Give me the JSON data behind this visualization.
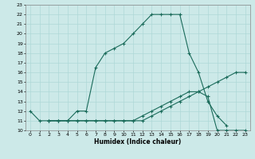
{
  "xlabel": "Humidex (Indice chaleur)",
  "xlim": [
    -0.5,
    23.5
  ],
  "ylim": [
    10,
    23
  ],
  "xticks": [
    0,
    1,
    2,
    3,
    4,
    5,
    6,
    7,
    8,
    9,
    10,
    11,
    12,
    13,
    14,
    15,
    16,
    17,
    18,
    19,
    20,
    21,
    22,
    23
  ],
  "yticks": [
    10,
    11,
    12,
    13,
    14,
    15,
    16,
    17,
    18,
    19,
    20,
    21,
    22,
    23
  ],
  "bg_color": "#cce9e8",
  "line_color": "#1a6b5a",
  "grid_color": "#aed8d7",
  "line1_x": [
    0,
    1,
    2,
    3,
    4,
    5,
    6,
    7,
    8,
    9,
    10,
    11,
    12,
    13,
    14,
    15,
    16,
    17,
    18,
    19,
    20,
    21
  ],
  "line1_y": [
    12,
    11,
    11,
    11,
    11,
    12,
    12,
    16.5,
    18,
    18.5,
    19,
    20,
    21,
    22,
    22,
    22,
    22,
    18,
    16,
    13,
    11.5,
    10.5
  ],
  "line2_x": [
    2,
    3,
    4,
    5,
    6,
    7,
    8,
    9,
    10,
    11,
    12,
    13,
    14,
    15,
    16,
    17,
    18,
    19,
    20,
    21,
    22,
    23
  ],
  "line2_y": [
    11,
    11,
    11,
    11,
    11,
    11,
    11,
    11,
    11,
    11,
    11,
    11.5,
    12,
    12.5,
    13,
    13.5,
    14,
    14.5,
    15,
    15.5,
    16,
    16
  ],
  "line3_x": [
    2,
    3,
    4,
    5,
    6,
    7,
    8,
    9,
    10,
    11,
    12,
    13,
    14,
    15,
    16,
    17,
    18,
    19,
    20,
    21,
    22,
    23
  ],
  "line3_y": [
    11,
    11,
    11,
    11,
    11,
    11,
    11,
    11,
    11,
    11,
    11.5,
    12,
    12.5,
    13,
    13.5,
    14,
    14,
    13.5,
    10,
    10,
    10,
    10
  ]
}
